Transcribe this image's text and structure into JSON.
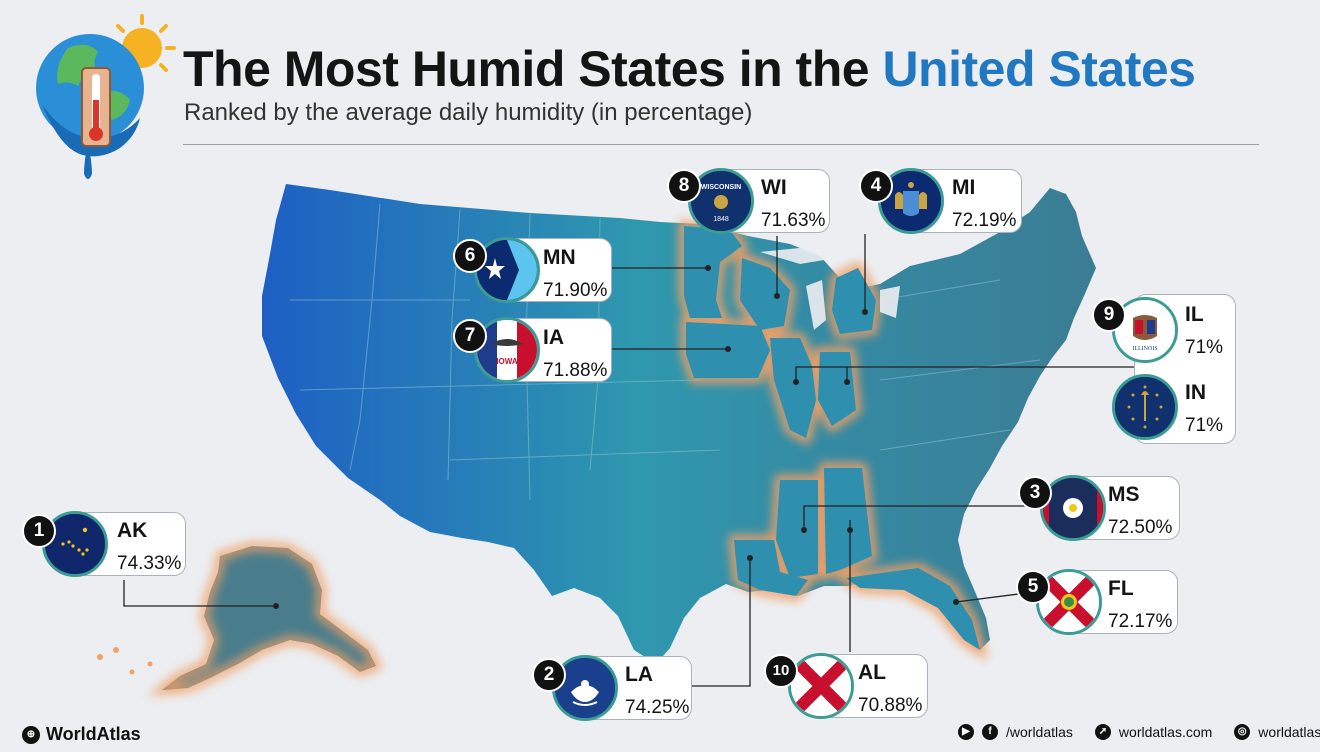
{
  "header": {
    "title_main": "The Most Humid States in the ",
    "title_highlight": "United States",
    "subtitle": "Ranked by the average daily humidity (in percentage)"
  },
  "colors": {
    "map_dark": "#1f5fbf",
    "map_mid": "#2f96ae",
    "map_east": "#3a7f95",
    "highlight_glow": "#f2a066",
    "title_accent": "#1f78c1",
    "ring": "#3a9c94"
  },
  "states": [
    {
      "rank": "1",
      "abbr": "AK",
      "value": "74.33%",
      "flag": "alaska-flag"
    },
    {
      "rank": "2",
      "abbr": "LA",
      "value": "74.25%",
      "flag": "louisiana-flag"
    },
    {
      "rank": "3",
      "abbr": "MS",
      "value": "72.50%",
      "flag": "mississippi-flag"
    },
    {
      "rank": "4",
      "abbr": "MI",
      "value": "72.19%",
      "flag": "michigan-flag"
    },
    {
      "rank": "5",
      "abbr": "FL",
      "value": "72.17%",
      "flag": "florida-flag"
    },
    {
      "rank": "6",
      "abbr": "MN",
      "value": "71.90%",
      "flag": "minnesota-flag"
    },
    {
      "rank": "7",
      "abbr": "IA",
      "value": "71.88%",
      "flag": "iowa-flag"
    },
    {
      "rank": "8",
      "abbr": "WI",
      "value": "71.63%",
      "flag": "wisconsin-flag"
    },
    {
      "rank": "9",
      "abbr": "IL",
      "value": "71%",
      "flag": "illinois-flag"
    },
    {
      "rank": "9",
      "abbr": "IN",
      "value": "71%",
      "flag": "indiana-flag"
    },
    {
      "rank": "10",
      "abbr": "AL",
      "value": "70.88%",
      "flag": "alabama-flag"
    }
  ],
  "flag_text": {
    "wisconsin_top": "WISCONSIN",
    "wisconsin_year": "1848",
    "iowa": "IOWA",
    "illinois": "ILLINOIS"
  },
  "footer": {
    "brand": "WorldAtlas",
    "social_handle": "/worldatlas",
    "website": "worldatlas.com",
    "instagram": "worldatlasig"
  }
}
